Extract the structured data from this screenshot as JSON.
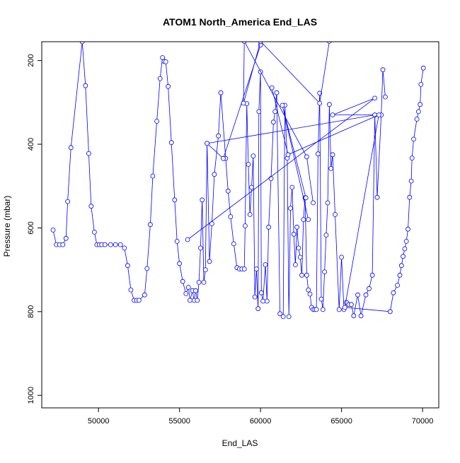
{
  "chart_data": {
    "type": "line",
    "title": "ATOM1 North_America End_LAS",
    "xlabel": "End_LAS",
    "ylabel": "Pressure (mbar)",
    "xlim": [
      46500,
      71000
    ],
    "ylim": [
      1030,
      155
    ],
    "y_inverted": true,
    "x_ticks": [
      50000,
      55000,
      60000,
      65000,
      70000
    ],
    "x_tick_labels": [
      "50000",
      "55000",
      "60000",
      "65000",
      "70000"
    ],
    "y_ticks": [
      200,
      400,
      600,
      800,
      1000
    ],
    "y_tick_labels": [
      "200",
      "400",
      "600",
      "800",
      "1000"
    ],
    "grid": false,
    "legend": "none",
    "colors": {
      "series": "#0000ff",
      "axis": "#000000",
      "background": "#ffffff"
    },
    "series": [
      {
        "points": [
          [
            47200,
            605
          ],
          [
            47400,
            640
          ],
          [
            47600,
            640
          ],
          [
            47800,
            640
          ],
          [
            48000,
            625
          ],
          [
            48100,
            537
          ],
          [
            48300,
            408
          ],
          [
            49000,
            155
          ],
          [
            49200,
            260
          ],
          [
            49400,
            422
          ],
          [
            49550,
            548
          ],
          [
            49750,
            610
          ],
          [
            49900,
            640
          ],
          [
            50050,
            640
          ],
          [
            50200,
            640
          ],
          [
            50400,
            640
          ],
          [
            50750,
            640
          ],
          [
            51050,
            640
          ],
          [
            51350,
            640
          ],
          [
            51600,
            648
          ],
          [
            51800,
            690
          ],
          [
            52000,
            748
          ],
          [
            52200,
            773
          ],
          [
            52350,
            773
          ],
          [
            52500,
            773
          ],
          [
            52850,
            760
          ],
          [
            53000,
            697
          ],
          [
            53200,
            592
          ],
          [
            53350,
            476
          ],
          [
            53600,
            345
          ],
          [
            53800,
            243
          ],
          [
            53950,
            193
          ],
          [
            54050,
            202
          ],
          [
            54150,
            203
          ],
          [
            54300,
            262
          ],
          [
            54500,
            396
          ],
          [
            54700,
            533
          ],
          [
            54850,
            632
          ],
          [
            55000,
            685
          ],
          [
            55200,
            728
          ],
          [
            55400,
            757
          ],
          [
            55550,
            742
          ],
          [
            55650,
            773
          ],
          [
            55800,
            750
          ],
          [
            55900,
            773
          ],
          [
            56000,
            750
          ],
          [
            56100,
            773
          ],
          [
            56200,
            730
          ],
          [
            56300,
            648
          ],
          [
            56400,
            533
          ],
          [
            56500,
            730
          ],
          [
            56600,
            700
          ],
          [
            56700,
            398
          ],
          [
            56850,
            680
          ],
          [
            57000,
            590
          ],
          [
            57150,
            472
          ],
          [
            57400,
            380
          ],
          [
            57550,
            277
          ],
          [
            57850,
            434
          ],
          [
            58000,
            512
          ],
          [
            58150,
            573
          ],
          [
            58350,
            638
          ],
          [
            58550,
            695
          ],
          [
            58700,
            698
          ],
          [
            58850,
            698
          ],
          [
            59000,
            698
          ],
          [
            59050,
            595
          ],
          [
            59150,
            303
          ],
          [
            59250,
            448
          ],
          [
            59350,
            568
          ],
          [
            59450,
            503
          ],
          [
            59550,
            428
          ],
          [
            59650,
            765
          ],
          [
            59750,
            698
          ],
          [
            59850,
            793
          ],
          [
            59900,
            322
          ],
          [
            60000,
            227
          ],
          [
            60050,
            755
          ],
          [
            60150,
            775
          ],
          [
            60300,
            688
          ],
          [
            60400,
            775
          ],
          [
            60500,
            598
          ],
          [
            60650,
            482
          ],
          [
            60800,
            347
          ],
          [
            60900,
            322
          ],
          [
            61000,
            277
          ],
          [
            61200,
            805
          ],
          [
            61400,
            812
          ],
          [
            61500,
            307
          ],
          [
            61650,
            433
          ],
          [
            61750,
            812
          ],
          [
            61850,
            553
          ],
          [
            61950,
            503
          ],
          [
            62050,
            615
          ],
          [
            62150,
            688
          ],
          [
            62250,
            598
          ],
          [
            62350,
            648
          ],
          [
            62450,
            670
          ],
          [
            62550,
            713
          ],
          [
            62650,
            580
          ],
          [
            62750,
            528
          ],
          [
            62850,
            713
          ],
          [
            62950,
            748
          ],
          [
            63050,
            758
          ],
          [
            63150,
            790
          ],
          [
            63250,
            795
          ],
          [
            63350,
            795
          ],
          [
            63450,
            795
          ],
          [
            63550,
            423
          ],
          [
            63650,
            278
          ],
          [
            63750,
            770
          ],
          [
            63850,
            795
          ],
          [
            63950,
            705
          ],
          [
            64050,
            617
          ],
          [
            64150,
            540
          ],
          [
            64250,
            305
          ],
          [
            64350,
            458
          ],
          [
            64450,
            425
          ],
          [
            64600,
            568
          ],
          [
            64850,
            795
          ],
          [
            65000,
            670
          ],
          [
            65150,
            795
          ],
          [
            65300,
            778
          ],
          [
            65450,
            783
          ],
          [
            65600,
            783
          ],
          [
            65750,
            810
          ],
          [
            66000,
            760
          ],
          [
            66200,
            810
          ],
          [
            66500,
            760
          ],
          [
            66700,
            745
          ],
          [
            66900,
            713
          ],
          [
            67050,
            330
          ],
          [
            67200,
            527
          ],
          [
            67450,
            330
          ],
          [
            67550,
            222
          ],
          [
            67700,
            287
          ]
        ]
      },
      {
        "points": [
          [
            55500,
            628
          ],
          [
            67050,
            290
          ],
          [
            64450,
            330
          ],
          [
            67050,
            330
          ],
          [
            56700,
            398
          ],
          [
            57700,
            434
          ],
          [
            60000,
            163
          ]
        ]
      },
      {
        "points": [
          [
            62800,
            528
          ],
          [
            61350,
            307
          ],
          [
            62950,
            580
          ]
        ]
      },
      {
        "points": [
          [
            60700,
            265
          ],
          [
            61700,
            425
          ],
          [
            67300,
            330
          ],
          [
            65200,
            790
          ],
          [
            68000,
            800
          ],
          [
            68200,
            755
          ],
          [
            68450,
            737
          ],
          [
            68600,
            713
          ],
          [
            68700,
            690
          ],
          [
            68800,
            668
          ],
          [
            68900,
            650
          ],
          [
            69000,
            632
          ],
          [
            69100,
            603
          ],
          [
            69200,
            527
          ],
          [
            69300,
            488
          ],
          [
            69350,
            433
          ],
          [
            69450,
            388
          ],
          [
            69650,
            340
          ],
          [
            69750,
            322
          ],
          [
            69850,
            305
          ],
          [
            69900,
            257
          ],
          [
            70050,
            218
          ]
        ]
      },
      {
        "points": [
          [
            64250,
            154
          ],
          [
            63650,
            302
          ],
          [
            60000,
            154
          ],
          [
            58950,
            302
          ],
          [
            59000,
            154
          ],
          [
            62850,
            430
          ],
          [
            63250,
            540
          ]
        ]
      }
    ]
  }
}
